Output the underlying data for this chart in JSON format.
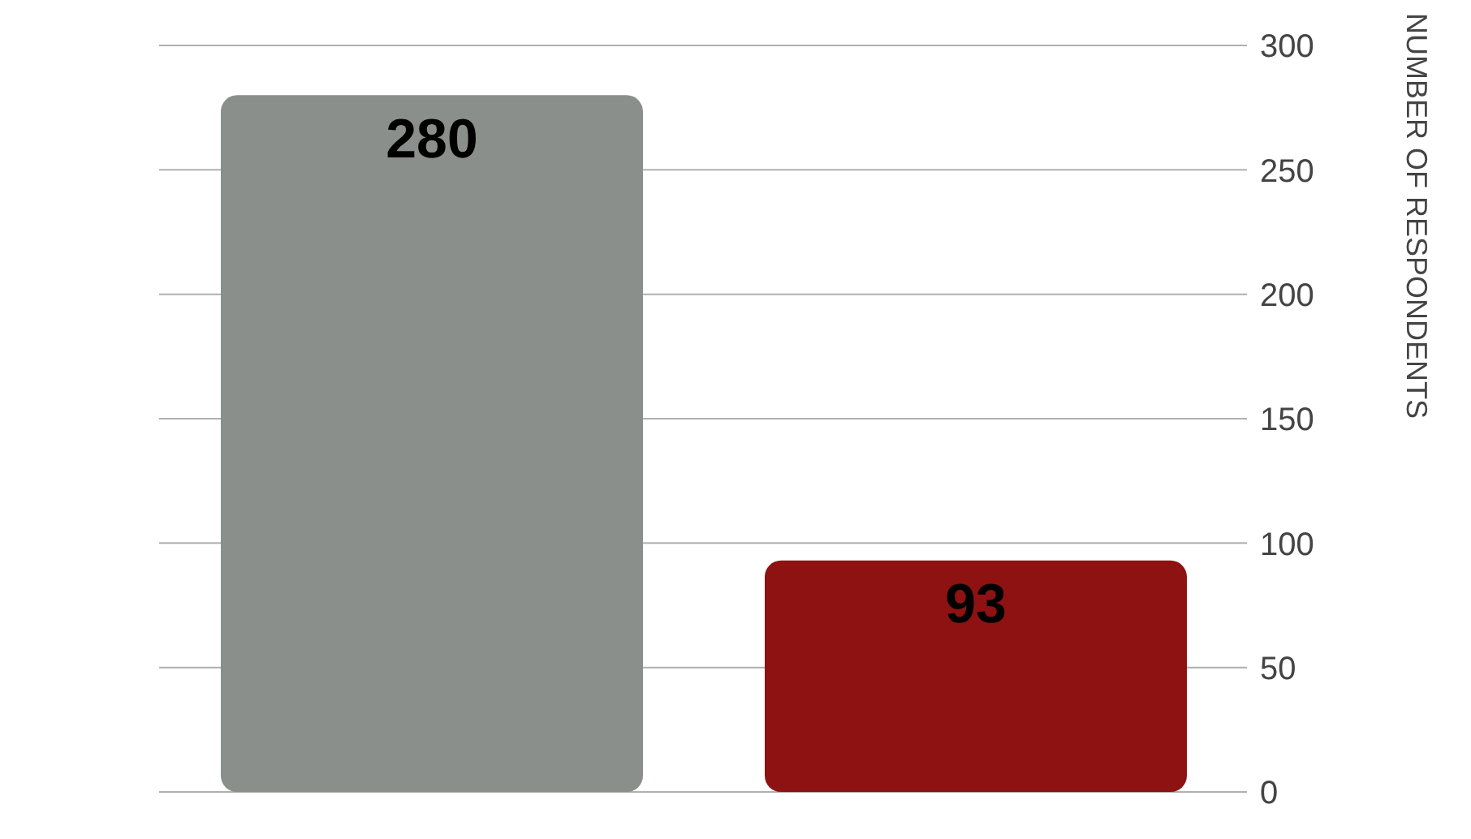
{
  "chart_data": {
    "type": "bar",
    "categories": [
      null,
      null
    ],
    "values": [
      280,
      93
    ],
    "colors": [
      "#8a8f8c",
      "#8e1212"
    ],
    "ylabel": "NUMBER OF RESPONDENTS",
    "ylim": [
      0,
      300
    ],
    "yticks": [
      0,
      50,
      100,
      150,
      200,
      250,
      300
    ],
    "grid": "y",
    "data_labels": true,
    "tick_labels": "y"
  }
}
